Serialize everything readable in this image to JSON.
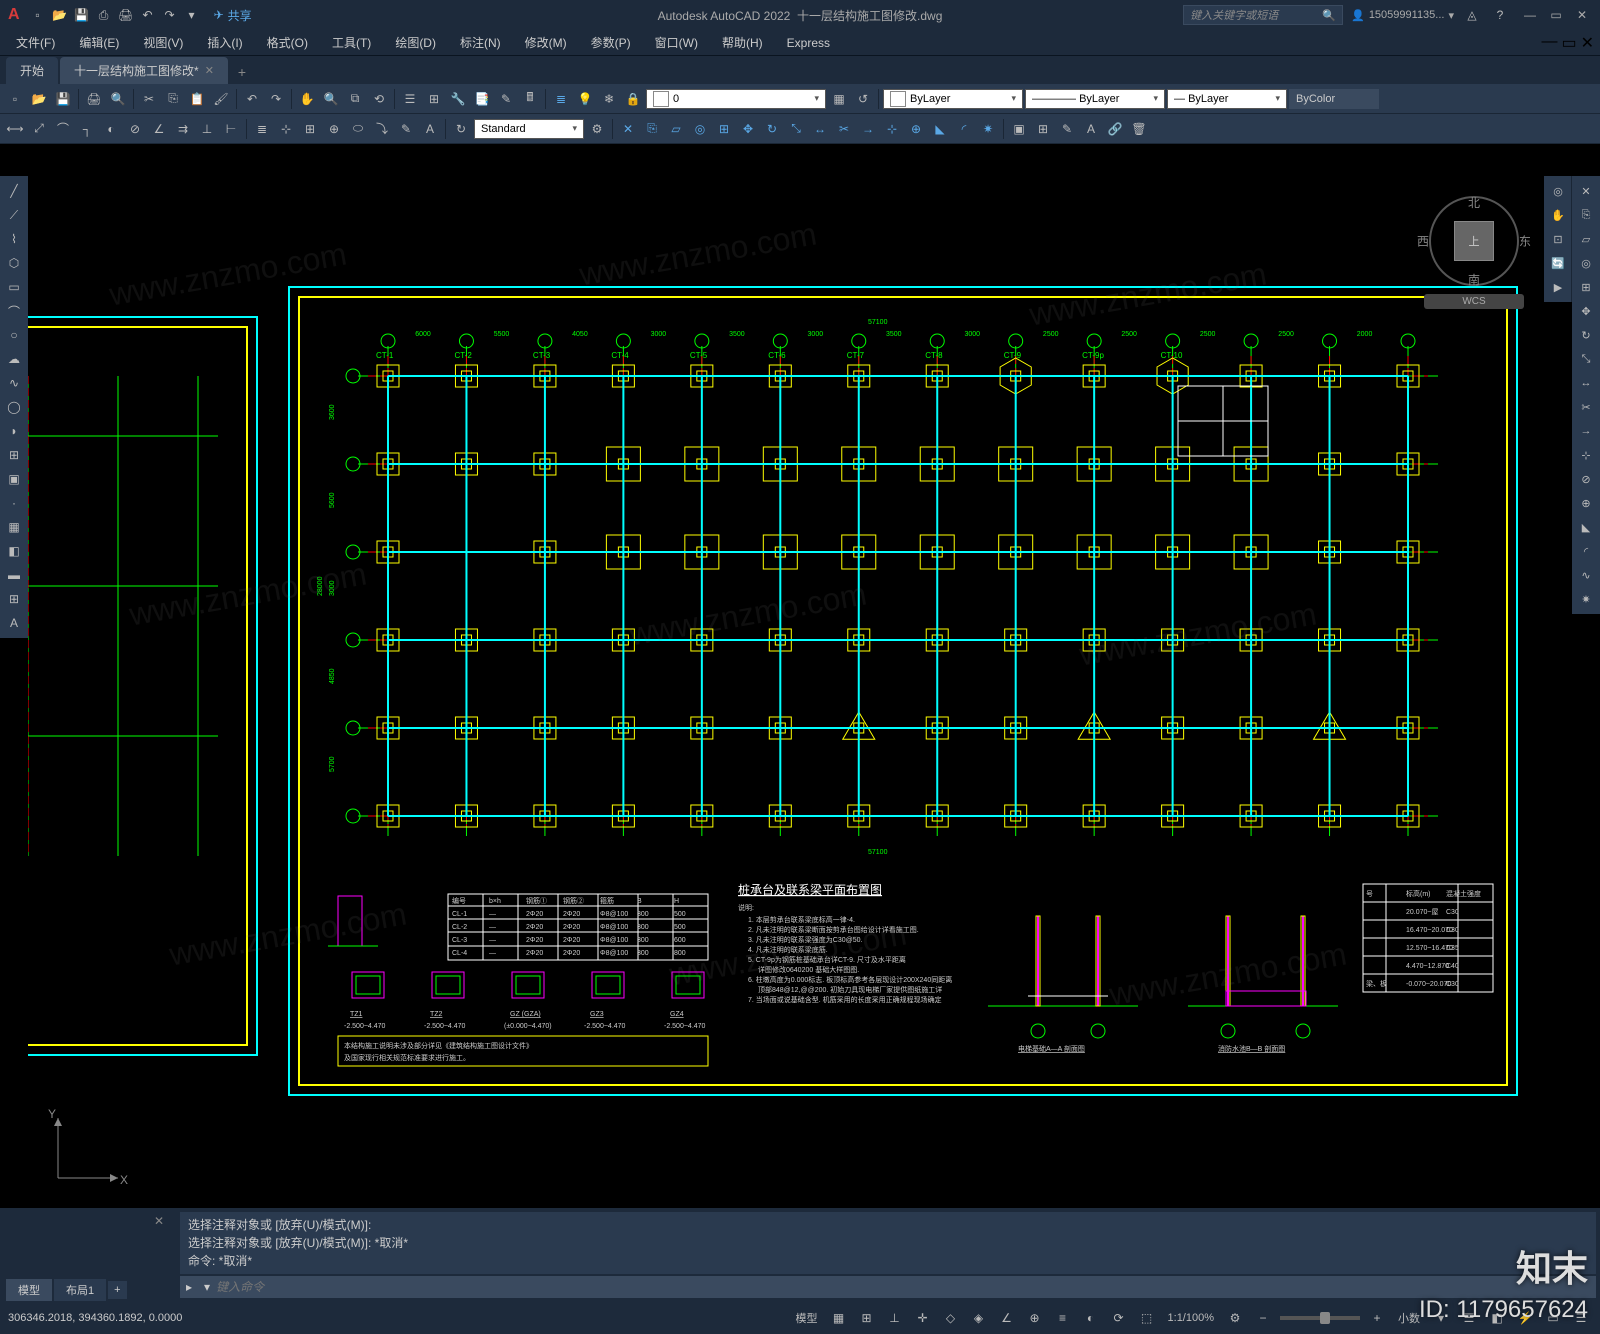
{
  "app": {
    "name": "Autodesk AutoCAD 2022",
    "filename": "十一层结构施工图修改.dwg",
    "share_label": "共享"
  },
  "search": {
    "placeholder": "键入关键字或短语"
  },
  "user": {
    "name": "15059991135..."
  },
  "menus": [
    "文件(F)",
    "编辑(E)",
    "视图(V)",
    "插入(I)",
    "格式(O)",
    "工具(T)",
    "绘图(D)",
    "标注(N)",
    "修改(M)",
    "参数(P)",
    "窗口(W)",
    "帮助(H)",
    "Express"
  ],
  "tabs": {
    "start": "开始",
    "doc": "十一层结构施工图修改*"
  },
  "toolbar": {
    "layer_current": "0",
    "combo_style": "Standard",
    "combo_bylayer": "ByLayer",
    "combo_lt": "ByLayer",
    "combo_lw": "ByLayer",
    "combo_color": "ByColor"
  },
  "viewcube": {
    "top": "上",
    "north": "北",
    "south": "南",
    "east": "东",
    "west": "西",
    "wcs": "WCS"
  },
  "cmd": {
    "history": [
      "选择注释对象或 [放弃(U)/模式(M)]:",
      "选择注释对象或 [放弃(U)/模式(M)]: *取消*",
      "命令: *取消*"
    ],
    "prompt_icon": "▸",
    "placeholder": "键入命令"
  },
  "layout_tabs": {
    "model": "模型",
    "layout1": "布局1"
  },
  "status": {
    "coords": "306346.2018, 394360.1892, 0.0000",
    "model": "模型",
    "scale": "1:1/100%",
    "decimal": "小数",
    "grid": "栅格"
  },
  "watermark": {
    "text": "www.znzmo.com",
    "logo": "知末",
    "id": "ID: 1179657624"
  },
  "drawing": {
    "main_title": "桩承台及联系梁平面布置图",
    "section_titles": [
      "电梯基础A—A 剖面图",
      "消防水池B—B 剖面图"
    ],
    "detail_labels": [
      "TZ1",
      "TZ2",
      "GZ  (GZA)",
      "GZ3",
      "GZ4"
    ],
    "detail_elev": [
      "-2.500~4.470",
      "-2.500~4.470",
      "(±0.000~4.470)",
      "-2.500~4.470",
      "-2.500~4.470"
    ],
    "notes_heading": "说明:",
    "notes": [
      "1. 本层剪承台联系梁底标高一律-4.",
      "2. 凡未注明的联系梁断面按剪承台图给设计详看施工图.",
      "3. 凡未注明的联系梁强度为C30@50.",
      "4. 凡未注明的联系梁底筋.",
      "5. CT-9p为钢筋桩基础承台详CT-9. 尺寸及水平距离",
      "   详图修改0640200 基础大样图图.",
      "6. 柱墩高度为0.000标志. 板顶标高参考各层现设计200X240同距离",
      "   顶部848@12,@@200. 初始刀具现电梯厂家提供图纸施工详",
      "7. 当场面或说基础含型. 机筋采用的长度采用正确规程现场确定"
    ],
    "grid_x_dims": [
      "6000",
      "5500",
      "4050",
      "3000",
      "3500",
      "3000",
      "3500",
      "3000",
      "2500",
      "2500",
      "2500",
      "2500",
      "2000"
    ],
    "grid_y_dims": [
      "3600",
      "5600",
      "3000",
      "4850",
      "5700"
    ],
    "total_x": "57100",
    "total_y": "28000",
    "col_labels": [
      "CT-1",
      "CT-2",
      "CT-3",
      "CT-4",
      "CT-5",
      "CT-6",
      "CT-7",
      "CT-8",
      "CT-9",
      "CT-9p",
      "CT-10"
    ],
    "table_left": {
      "headers": [
        "编号",
        "b×h",
        "钢筋①",
        "钢筋②",
        "箍筋",
        "B",
        "H"
      ],
      "rows": [
        [
          "CL-1",
          "—",
          "2Φ20",
          "2Φ20",
          "Φ8@100",
          "300",
          "500"
        ],
        [
          "CL-2",
          "—",
          "2Φ20",
          "2Φ20",
          "Φ8@100",
          "300",
          "500"
        ],
        [
          "CL-3",
          "—",
          "2Φ20",
          "2Φ20",
          "Φ8@100",
          "300",
          "600"
        ],
        [
          "CL-4",
          "—",
          "2Φ20",
          "2Φ20",
          "Φ8@100",
          "300",
          "800"
        ]
      ]
    },
    "table_right": {
      "headers": [
        "号",
        "标高(m)",
        "混凝土强度"
      ],
      "rows": [
        [
          "",
          "20.070~屋",
          "C30"
        ],
        [
          "",
          "16.470~20.070",
          "C30"
        ],
        [
          "",
          "12.570~16.470",
          "C35"
        ],
        [
          "",
          "4.470~12.870",
          "C40"
        ],
        [
          "梁、板",
          "-0.070~20.070",
          "C30"
        ]
      ]
    },
    "colors": {
      "cyan": "#00ffff",
      "yellow": "#ffff00",
      "green": "#00ff00",
      "red": "#ff0000",
      "magenta": "#ff00ff",
      "white": "#ffffff",
      "bg": "#000000"
    }
  }
}
